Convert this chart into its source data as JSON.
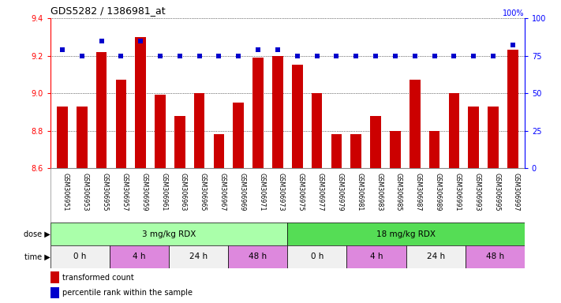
{
  "title": "GDS5282 / 1386981_at",
  "samples": [
    "GSM306951",
    "GSM306953",
    "GSM306955",
    "GSM306957",
    "GSM306959",
    "GSM306961",
    "GSM306963",
    "GSM306965",
    "GSM306967",
    "GSM306969",
    "GSM306971",
    "GSM306973",
    "GSM306975",
    "GSM306977",
    "GSM306979",
    "GSM306981",
    "GSM306983",
    "GSM306985",
    "GSM306987",
    "GSM306989",
    "GSM306991",
    "GSM306993",
    "GSM306995",
    "GSM306997"
  ],
  "transformed_count": [
    8.93,
    8.93,
    9.22,
    9.07,
    9.3,
    8.99,
    8.88,
    9.0,
    8.78,
    8.95,
    9.19,
    9.2,
    9.15,
    9.0,
    8.78,
    8.78,
    8.88,
    8.8,
    9.07,
    8.8,
    9.0,
    8.93,
    8.93,
    9.23
  ],
  "percentile_rank": [
    79,
    75,
    85,
    75,
    85,
    75,
    75,
    75,
    75,
    75,
    79,
    79,
    75,
    75,
    75,
    75,
    75,
    75,
    75,
    75,
    75,
    75,
    75,
    82
  ],
  "ylim_left": [
    8.6,
    9.4
  ],
  "ylim_right": [
    0,
    100
  ],
  "yticks_left": [
    8.6,
    8.8,
    9.0,
    9.2,
    9.4
  ],
  "yticks_right": [
    0,
    25,
    50,
    75,
    100
  ],
  "bar_color": "#cc0000",
  "dot_color": "#0000cc",
  "bar_bottom": 8.6,
  "dose_groups": [
    {
      "label": "3 mg/kg RDX",
      "start": 0,
      "end": 12,
      "color": "#aaffaa"
    },
    {
      "label": "18 mg/kg RDX",
      "start": 12,
      "end": 24,
      "color": "#55dd55"
    }
  ],
  "time_groups": [
    {
      "label": "0 h",
      "start": 0,
      "end": 3,
      "color": "#f0f0f0"
    },
    {
      "label": "4 h",
      "start": 3,
      "end": 6,
      "color": "#dd88dd"
    },
    {
      "label": "24 h",
      "start": 6,
      "end": 9,
      "color": "#f0f0f0"
    },
    {
      "label": "48 h",
      "start": 9,
      "end": 12,
      "color": "#dd88dd"
    },
    {
      "label": "0 h",
      "start": 12,
      "end": 15,
      "color": "#f0f0f0"
    },
    {
      "label": "4 h",
      "start": 15,
      "end": 18,
      "color": "#dd88dd"
    },
    {
      "label": "24 h",
      "start": 18,
      "end": 21,
      "color": "#f0f0f0"
    },
    {
      "label": "48 h",
      "start": 21,
      "end": 24,
      "color": "#dd88dd"
    }
  ],
  "dose_label": "dose",
  "time_label": "time",
  "legend_items": [
    {
      "color": "#cc0000",
      "label": "transformed count"
    },
    {
      "color": "#0000cc",
      "label": "percentile rank within the sample"
    }
  ],
  "xlabel_bg": "#d0d0d0",
  "fig_width": 7.11,
  "fig_height": 3.84,
  "dpi": 100
}
